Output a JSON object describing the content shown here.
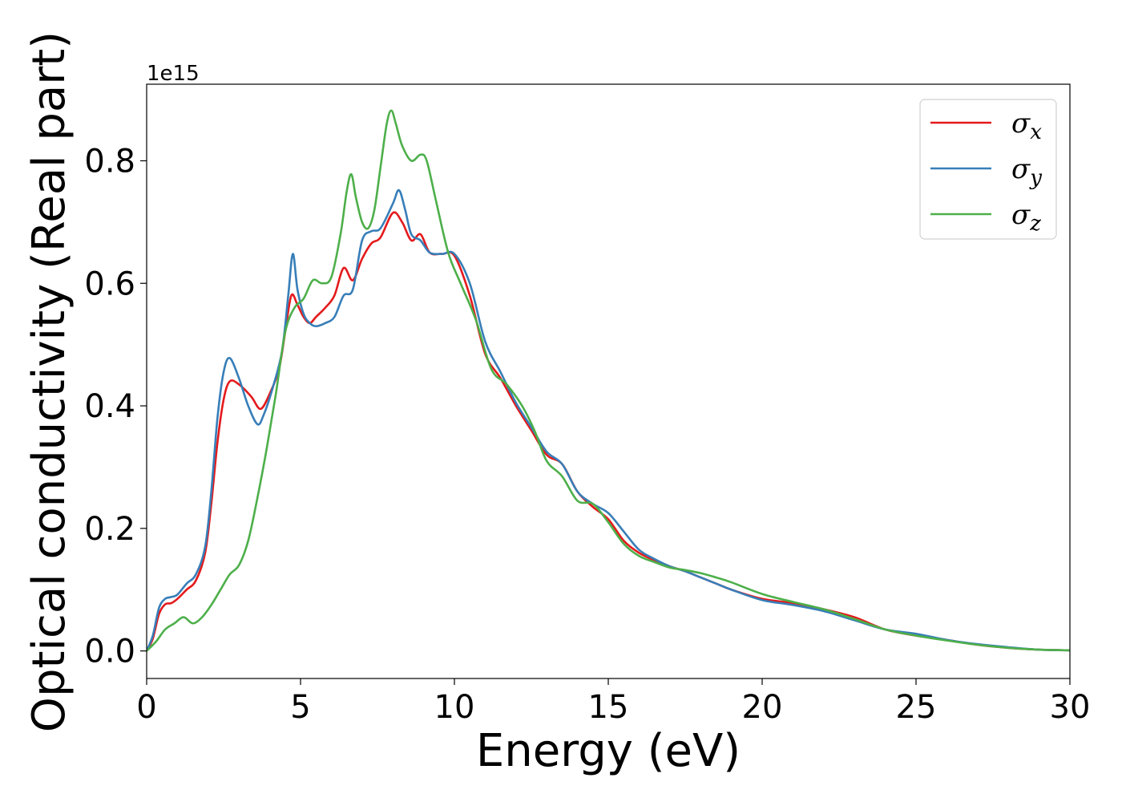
{
  "chart_data": {
    "type": "line",
    "title": "",
    "xlabel": "Energy (eV)",
    "ylabel": "Optical conductivity (Real part)",
    "y_offset_label": "1e15",
    "xlim": [
      0,
      30
    ],
    "ylim": [
      -0.045,
      0.925
    ],
    "x_ticks": [
      0,
      5,
      10,
      15,
      20,
      25,
      30
    ],
    "y_ticks": [
      0.0,
      0.2,
      0.4,
      0.6,
      0.8
    ],
    "x_tick_labels": [
      "0",
      "5",
      "10",
      "15",
      "20",
      "25",
      "30"
    ],
    "y_tick_labels": [
      "0.0",
      "0.2",
      "0.4",
      "0.6",
      "0.8"
    ],
    "grid": false,
    "legend": {
      "placement": "top-right",
      "entries": [
        {
          "symbol": "σ",
          "subscript": "x"
        },
        {
          "symbol": "σ",
          "subscript": "y"
        },
        {
          "symbol": "σ",
          "subscript": "z"
        }
      ]
    },
    "series": [
      {
        "color": "#e41a1c",
        "x": [
          0,
          0.2,
          0.4,
          0.6,
          0.8,
          1.0,
          1.3,
          1.6,
          1.9,
          2.1,
          2.3,
          2.5,
          2.7,
          3.0,
          3.4,
          3.7,
          4.0,
          4.3,
          4.5,
          4.7,
          4.9,
          5.1,
          5.3,
          5.5,
          5.8,
          6.1,
          6.4,
          6.7,
          7.0,
          7.3,
          7.6,
          8.0,
          8.3,
          8.6,
          8.9,
          9.2,
          9.6,
          10.0,
          10.5,
          11.0,
          11.5,
          12.0,
          12.5,
          13.0,
          13.5,
          14.0,
          14.5,
          15.0,
          15.5,
          16.0,
          16.5,
          17.0,
          17.5,
          18.0,
          18.5,
          19.0,
          20.0,
          21.0,
          22.0,
          23.0,
          24.0,
          25.0,
          26.0,
          27.0,
          28.0,
          29.0,
          30.0
        ],
        "values": [
          0.0,
          0.02,
          0.06,
          0.076,
          0.078,
          0.085,
          0.1,
          0.115,
          0.16,
          0.24,
          0.34,
          0.41,
          0.44,
          0.435,
          0.415,
          0.395,
          0.42,
          0.46,
          0.52,
          0.58,
          0.565,
          0.545,
          0.535,
          0.545,
          0.56,
          0.58,
          0.625,
          0.605,
          0.64,
          0.665,
          0.675,
          0.715,
          0.7,
          0.67,
          0.68,
          0.65,
          0.648,
          0.645,
          0.58,
          0.485,
          0.445,
          0.4,
          0.36,
          0.32,
          0.305,
          0.26,
          0.235,
          0.215,
          0.18,
          0.16,
          0.148,
          0.138,
          0.13,
          0.12,
          0.11,
          0.1,
          0.085,
          0.078,
          0.068,
          0.055,
          0.035,
          0.025,
          0.018,
          0.01,
          0.005,
          0.002,
          0.001
        ]
      },
      {
        "color": "#377eb8",
        "x": [
          0,
          0.2,
          0.4,
          0.6,
          0.8,
          1.0,
          1.3,
          1.6,
          1.9,
          2.1,
          2.3,
          2.5,
          2.7,
          3.0,
          3.3,
          3.6,
          3.8,
          4.1,
          4.4,
          4.6,
          4.75,
          4.9,
          5.1,
          5.3,
          5.5,
          5.8,
          6.1,
          6.4,
          6.7,
          7.0,
          7.3,
          7.6,
          8.0,
          8.2,
          8.4,
          8.6,
          8.9,
          9.2,
          9.6,
          10.0,
          10.5,
          11.0,
          11.5,
          12.0,
          12.5,
          13.0,
          13.5,
          14.0,
          14.5,
          15.0,
          15.5,
          16.0,
          16.5,
          17.0,
          17.5,
          18.0,
          18.5,
          19.0,
          20.0,
          21.0,
          22.0,
          23.0,
          24.0,
          25.0,
          26.0,
          27.0,
          28.0,
          29.0,
          30.0
        ],
        "values": [
          0.0,
          0.025,
          0.07,
          0.085,
          0.088,
          0.092,
          0.11,
          0.125,
          0.17,
          0.26,
          0.38,
          0.455,
          0.478,
          0.445,
          0.4,
          0.37,
          0.385,
          0.43,
          0.49,
          0.58,
          0.648,
          0.59,
          0.55,
          0.535,
          0.53,
          0.535,
          0.545,
          0.58,
          0.59,
          0.67,
          0.685,
          0.69,
          0.73,
          0.752,
          0.72,
          0.68,
          0.67,
          0.65,
          0.648,
          0.648,
          0.6,
          0.505,
          0.455,
          0.405,
          0.365,
          0.325,
          0.305,
          0.26,
          0.24,
          0.225,
          0.195,
          0.165,
          0.15,
          0.138,
          0.13,
          0.12,
          0.11,
          0.1,
          0.083,
          0.075,
          0.065,
          0.05,
          0.035,
          0.028,
          0.018,
          0.011,
          0.006,
          0.002,
          0.001
        ]
      },
      {
        "color": "#4daf4a",
        "x": [
          0,
          0.3,
          0.6,
          0.9,
          1.2,
          1.5,
          1.8,
          2.1,
          2.4,
          2.7,
          3.0,
          3.3,
          3.6,
          3.9,
          4.2,
          4.5,
          4.8,
          5.1,
          5.4,
          5.7,
          6.0,
          6.3,
          6.5,
          6.65,
          6.8,
          7.0,
          7.2,
          7.4,
          7.6,
          7.8,
          7.95,
          8.1,
          8.3,
          8.6,
          8.9,
          9.1,
          9.4,
          9.8,
          10.2,
          10.7,
          11.2,
          11.7,
          12.2,
          12.6,
          13.0,
          13.5,
          14.0,
          14.5,
          15.0,
          15.5,
          16.0,
          16.5,
          17.0,
          17.5,
          18.0,
          18.5,
          19.0,
          20.0,
          21.0,
          22.0,
          23.0,
          24.0,
          25.0,
          26.0,
          27.0,
          28.0,
          29.0,
          30.0
        ],
        "values": [
          0.0,
          0.015,
          0.035,
          0.045,
          0.055,
          0.045,
          0.055,
          0.075,
          0.1,
          0.125,
          0.14,
          0.18,
          0.25,
          0.33,
          0.42,
          0.52,
          0.56,
          0.575,
          0.605,
          0.6,
          0.61,
          0.68,
          0.75,
          0.778,
          0.74,
          0.7,
          0.69,
          0.72,
          0.79,
          0.86,
          0.882,
          0.86,
          0.825,
          0.8,
          0.81,
          0.8,
          0.735,
          0.65,
          0.6,
          0.54,
          0.46,
          0.435,
          0.4,
          0.36,
          0.31,
          0.285,
          0.245,
          0.24,
          0.21,
          0.175,
          0.155,
          0.145,
          0.136,
          0.132,
          0.127,
          0.12,
          0.112,
          0.093,
          0.08,
          0.068,
          0.052,
          0.035,
          0.025,
          0.017,
          0.01,
          0.005,
          0.002,
          0.001
        ]
      }
    ]
  }
}
